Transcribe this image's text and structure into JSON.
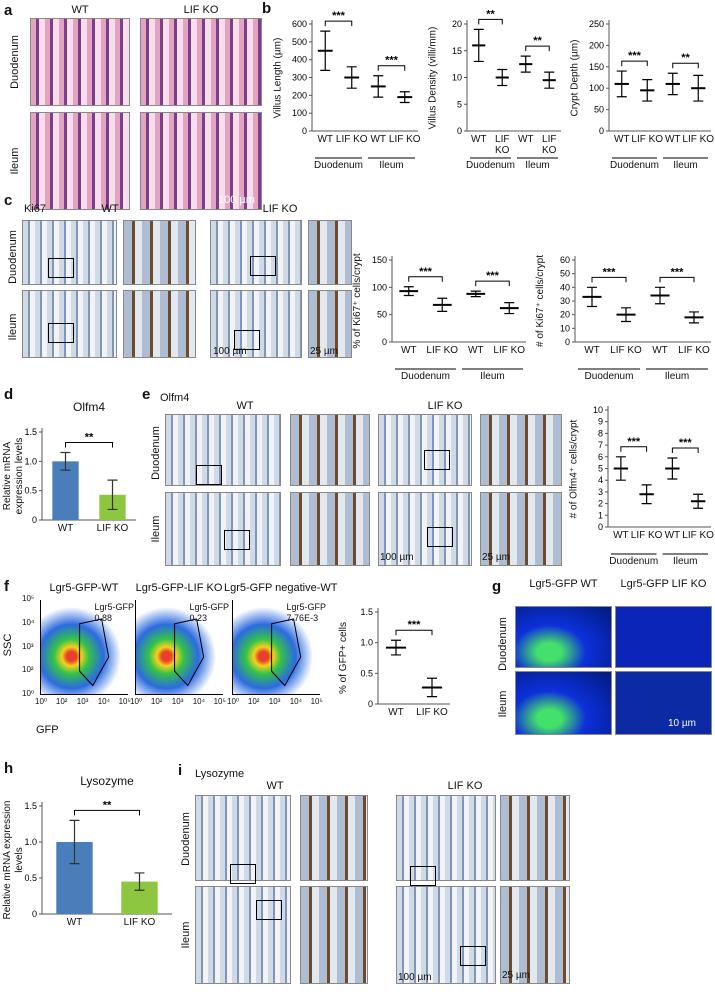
{
  "panels": {
    "a": {
      "letter": "a",
      "columns": [
        "WT",
        "LIF KO"
      ],
      "rows": [
        "Duodenum",
        "Ileum"
      ],
      "scale": "100 µm"
    },
    "b": {
      "letter": "b"
    },
    "c": {
      "letter": "c",
      "stain": "Ki67",
      "columns": [
        "WT",
        "LIF KO"
      ],
      "rows": [
        "Duodenum",
        "Ileum"
      ],
      "scales": [
        "100 µm",
        "25 µm"
      ]
    },
    "d": {
      "letter": "d"
    },
    "e": {
      "letter": "e",
      "stain": "Olfm4",
      "columns": [
        "WT",
        "LIF KO"
      ],
      "rows": [
        "Duodenum",
        "Ileum"
      ],
      "scales": [
        "100 µm",
        "25 µm"
      ]
    },
    "f": {
      "letter": "f",
      "plots": [
        {
          "title": "Lgr5-GFP-WT",
          "gate": "Lgr5-GFP",
          "percent": "0.88"
        },
        {
          "title": "Lgr5-GFP-LIF KO",
          "gate": "Lgr5-GFP",
          "percent": "0.23"
        },
        {
          "title": "Lgr5-GFP negative-WT",
          "gate": "Lgr5-GFP",
          "percent": "7.76E-3"
        }
      ],
      "y_axis": "SSC",
      "x_axis": "GFP",
      "ticks": [
        "10⁰",
        "10²",
        "10³",
        "10⁴",
        "10⁵"
      ]
    },
    "g": {
      "letter": "g",
      "columns": [
        "Lgr5-GFP WT",
        "Lgr5-GFP LIF KO"
      ],
      "rows": [
        "Duodenum",
        "Ileum"
      ],
      "scale": "10 µm"
    },
    "h": {
      "letter": "h"
    },
    "i": {
      "letter": "i",
      "stain": "Lysozyme",
      "columns": [
        "WT",
        "LIF KO"
      ],
      "rows": [
        "Duodenum",
        "Ileum"
      ],
      "scales": [
        "100 µm",
        "25 µm"
      ]
    }
  },
  "chart_data": [
    {
      "type": "dot",
      "y_label": "Villus Length (µm)",
      "categories": [
        "WT",
        "LIF KO",
        "WT",
        "LIF KO"
      ],
      "groups": [
        "Duodenum",
        "Ileum"
      ],
      "values": [
        450,
        300,
        250,
        190
      ],
      "errors": [
        110,
        60,
        60,
        30
      ],
      "significance": [
        "***",
        "***"
      ],
      "color": "#000000",
      "ylim": [
        0,
        600
      ],
      "yticks": [
        0,
        100,
        200,
        300,
        400,
        500,
        600
      ]
    },
    {
      "type": "dot",
      "y_label": "Villus Density (villi/mm)",
      "categories": [
        "WT",
        "LIF KO",
        "WT",
        "LIF KO"
      ],
      "groups": [
        "Duodenum",
        "Ileum"
      ],
      "values": [
        16,
        10,
        12.5,
        9.5
      ],
      "errors": [
        3,
        1.5,
        1.5,
        1.5
      ],
      "significance": [
        "**",
        "**"
      ],
      "color": "#000000",
      "ylim": [
        0,
        20
      ],
      "yticks": [
        0,
        5,
        10,
        15,
        20
      ]
    },
    {
      "type": "dot",
      "y_label": "Crypt Depth (µm)",
      "categories": [
        "WT",
        "LIF KO",
        "WT",
        "LIF KO"
      ],
      "groups": [
        "Duodenum",
        "Ileum"
      ],
      "values": [
        110,
        95,
        110,
        100
      ],
      "errors": [
        30,
        25,
        25,
        30
      ],
      "significance": [
        "***",
        "**"
      ],
      "color": "#000000",
      "ylim": [
        0,
        250
      ],
      "yticks": [
        0,
        50,
        100,
        150,
        200,
        250
      ]
    },
    {
      "type": "dot",
      "y_label": "% of Ki67⁺ cells/crypt",
      "categories": [
        "WT",
        "LIF KO",
        "WT",
        "LIF KO"
      ],
      "groups": [
        "Duodenum",
        "Ileum"
      ],
      "values": [
        93,
        68,
        88,
        62
      ],
      "errors": [
        8,
        12,
        5,
        10
      ],
      "significance": [
        "***",
        "***"
      ],
      "color": "#000000",
      "ylim": [
        0,
        150
      ],
      "yticks": [
        0,
        50,
        100,
        150
      ]
    },
    {
      "type": "dot",
      "y_label": "# of Ki67⁺ cells/crypt",
      "categories": [
        "WT",
        "LIF KO",
        "WT",
        "LIF KO"
      ],
      "groups": [
        "Duodenum",
        "Ileum"
      ],
      "values": [
        33,
        20,
        34,
        18
      ],
      "errors": [
        7,
        5,
        6,
        4
      ],
      "significance": [
        "***",
        "***"
      ],
      "color": "#000000",
      "ylim": [
        0,
        60
      ],
      "yticks": [
        0,
        10,
        20,
        30,
        40,
        50,
        60
      ]
    },
    {
      "type": "bar",
      "title": "Olfm4",
      "y_label": "Relative mRNA expression levels",
      "categories": [
        "WT",
        "LIF KO"
      ],
      "values": [
        1,
        0.43
      ],
      "errors": [
        0.15,
        0.25
      ],
      "significance": [
        "**"
      ],
      "colors": [
        "#4a7ebb",
        "#8dc63f"
      ],
      "ylim": [
        0,
        1.5
      ],
      "yticks": [
        0,
        0.5,
        {
          "value": 1,
          "label": "1.0"
        },
        1.5
      ]
    },
    {
      "type": "dot",
      "y_label": "# of Olfm4⁺ cells/crypt",
      "categories": [
        "WT",
        "LIF KO",
        "WT",
        "LIF KO"
      ],
      "groups": [
        "Duodenum",
        "Ileum"
      ],
      "values": [
        5,
        2.8,
        5,
        2.2
      ],
      "errors": [
        1,
        0.8,
        0.9,
        0.6
      ],
      "significance": [
        "***",
        "***"
      ],
      "color": "#000000",
      "ylim": [
        0,
        10
      ],
      "yticks": [
        0,
        1,
        2,
        3,
        4,
        5,
        6,
        7,
        8,
        9,
        10
      ]
    },
    {
      "type": "dot",
      "y_label": "% of GFP+ cells",
      "categories": [
        "WT",
        "LIF KO"
      ],
      "values": [
        0.92,
        0.27
      ],
      "errors": [
        0.12,
        0.15
      ],
      "significance": [
        "***"
      ],
      "color": "#000000",
      "ylim": [
        0,
        1.5
      ],
      "yticks": [
        0,
        0.5,
        {
          "value": 1,
          "label": "1.0"
        },
        1.5
      ]
    },
    {
      "type": "bar",
      "title": "Lysozyme",
      "y_label": "Relative mRNA expression levels",
      "categories": [
        "WT",
        "LIF KO"
      ],
      "values": [
        1,
        0.45
      ],
      "errors": [
        0.3,
        0.12
      ],
      "significance": [
        "**"
      ],
      "colors": [
        "#4a7ebb",
        "#8dc63f"
      ],
      "ylim": [
        0,
        1.5
      ],
      "yticks": [
        0,
        0.5,
        {
          "value": 1,
          "label": "1.0"
        },
        1.5
      ]
    }
  ]
}
